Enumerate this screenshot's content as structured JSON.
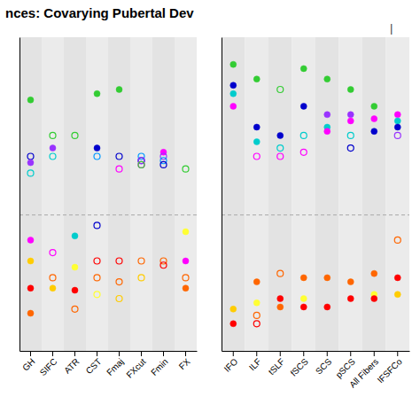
{
  "chart_data": [
    {
      "type": "scatter",
      "title": "nces: Covarying Pubertal Dev",
      "categories": [
        "GH",
        "SIFC",
        "ATR",
        "CST",
        "Fmaj",
        "FXcut",
        "Fmin",
        "FX"
      ],
      "values": [
        [
          0.55,
          0.28,
          0.25,
          0.2,
          -0.12,
          -0.22,
          -0.35,
          -0.47
        ],
        [
          0.38,
          0.32,
          0.28,
          -0.18,
          -0.3,
          -0.35
        ],
        [
          0.38,
          -0.1,
          -0.25,
          -0.36,
          -0.45
        ],
        [
          0.58,
          0.32,
          0.28,
          -0.05,
          -0.22,
          -0.3,
          -0.38
        ],
        [
          0.6,
          0.28,
          0.22,
          -0.22,
          -0.32,
          -0.4
        ],
        [
          0.28,
          0.26,
          0.26,
          0.24,
          0.24,
          -0.22,
          -0.3
        ],
        [
          0.3,
          0.28,
          0.26,
          0.24,
          -0.22,
          -0.24
        ],
        [
          0.22,
          -0.08,
          -0.22,
          -0.3,
          -0.35
        ]
      ],
      "colors": [
        [
          "#33cc33",
          "#0000cc",
          "#9933ff",
          "#00cccc",
          "#ff00ff",
          "#ffcc00",
          "#ff0000",
          "#ff6600"
        ],
        [
          "#33cc33",
          "#9933ff",
          "#00cccc",
          "#ff00ff",
          "#ff6600",
          "#ffcc00"
        ],
        [
          "#33cc33",
          "#00cccc",
          "#ffff33",
          "#ff0000",
          "#ff6600"
        ],
        [
          "#33cc33",
          "#0000cc",
          "#0099ff",
          "#0000cc",
          "#ff0000",
          "#ff6600",
          "#ffff33"
        ],
        [
          "#33cc33",
          "#0000cc",
          "#ff00ff",
          "#ff0000",
          "#ff6600",
          "#ffcc00"
        ],
        [
          "#0099ff",
          "#0000cc",
          "#9933ff",
          "#ff00ff",
          "#33cc33",
          "#ff6600",
          "#ffcc00"
        ],
        [
          "#ff00ff",
          "#9933ff",
          "#0099ff",
          "#0000cc",
          "#ff6600",
          "#ff0000"
        ],
        [
          "#33cc33",
          "#ffff33",
          "#ff00ff",
          "#ff6600",
          "#ff6600"
        ]
      ],
      "marker": [
        [
          "filled",
          "open",
          "filled",
          "open",
          "filled",
          "filled",
          "filled",
          "filled"
        ],
        [
          "open",
          "filled",
          "open",
          "open",
          "open",
          "filled"
        ],
        [
          "open",
          "filled",
          "filled",
          "filled",
          "open"
        ],
        [
          "filled",
          "filled",
          "open",
          "open",
          "open",
          "open",
          "open"
        ],
        [
          "filled",
          "open",
          "open",
          "open",
          "open",
          "open"
        ],
        [
          "open",
          "open",
          "open",
          "open",
          "open",
          "open",
          "open"
        ],
        [
          "filled",
          "open",
          "open",
          "open",
          "open",
          "open"
        ],
        [
          "open",
          "filled",
          "filled",
          "open",
          "filled"
        ]
      ],
      "reference_line": 0,
      "ylim": [
        -0.65,
        0.85
      ],
      "yticks": [],
      "tick_labels": "x"
    },
    {
      "type": "scatter",
      "annotation": "|",
      "categories": [
        "IFO",
        "ILF",
        "tSLF",
        "fSCS",
        "SCS",
        "pSCS",
        "All Fibers",
        "IFSFCo"
      ],
      "values": [
        [
          0.72,
          0.62,
          0.58,
          0.52,
          -0.52,
          -0.45
        ],
        [
          0.65,
          0.42,
          0.35,
          0.28,
          -0.32,
          -0.42,
          -0.48,
          -0.52
        ],
        [
          0.6,
          0.38,
          0.32,
          0.28,
          -0.28,
          -0.4,
          -0.44
        ],
        [
          0.7,
          0.52,
          0.38,
          0.3,
          -0.3,
          -0.4,
          -0.44
        ],
        [
          0.65,
          0.48,
          0.42,
          0.4,
          -0.3,
          -0.44
        ],
        [
          0.6,
          0.48,
          0.45,
          0.38,
          0.32,
          -0.32,
          -0.4
        ],
        [
          0.52,
          0.46,
          0.4,
          -0.28,
          -0.38,
          -0.4
        ],
        [
          0.48,
          0.45,
          0.42,
          0.38,
          -0.12,
          -0.3,
          -0.38
        ]
      ],
      "colors": [
        [
          "#33cc33",
          "#0000cc",
          "#00cccc",
          "#ff00ff",
          "#ff0000",
          "#ffcc00"
        ],
        [
          "#33cc33",
          "#0000cc",
          "#00cccc",
          "#ff00ff",
          "#ff6600",
          "#ffff33",
          "#ff6600",
          "#ff0000"
        ],
        [
          "#33cc33",
          "#0000cc",
          "#00cccc",
          "#ff00ff",
          "#ff6600",
          "#ff0000",
          "#ff6600"
        ],
        [
          "#33cc33",
          "#0000cc",
          "#00cccc",
          "#ff00ff",
          "#ff6600",
          "#ffff33",
          "#ff0000"
        ],
        [
          "#33cc33",
          "#9933ff",
          "#00cccc",
          "#ff00ff",
          "#ff6600",
          "#ff0000"
        ],
        [
          "#33cc33",
          "#9933ff",
          "#ff00ff",
          "#00cccc",
          "#0000cc",
          "#ff6600",
          "#ff0000"
        ],
        [
          "#33cc33",
          "#ff00ff",
          "#0000cc",
          "#ff6600",
          "#ffff33",
          "#ff0000"
        ],
        [
          "#ff00ff",
          "#00cccc",
          "#0000cc",
          "#9933ff",
          "#ff6600",
          "#ff0000",
          "#ffcc00"
        ]
      ],
      "marker": [
        [
          "filled",
          "filled",
          "filled",
          "filled",
          "filled",
          "filled"
        ],
        [
          "filled",
          "filled",
          "filled",
          "open",
          "filled",
          "filled",
          "open",
          "open"
        ],
        [
          "open",
          "filled",
          "open",
          "open",
          "open",
          "filled",
          "filled"
        ],
        [
          "filled",
          "filled",
          "open",
          "open",
          "filled",
          "filled",
          "filled"
        ],
        [
          "filled",
          "filled",
          "filled",
          "filled",
          "filled",
          "filled"
        ],
        [
          "filled",
          "filled",
          "filled",
          "open",
          "open",
          "filled",
          "filled"
        ],
        [
          "filled",
          "filled",
          "filled",
          "filled",
          "filled",
          "filled"
        ],
        [
          "filled",
          "filled",
          "filled",
          "open",
          "open",
          "filled",
          "filled"
        ]
      ],
      "reference_line": 0,
      "ylim": [
        -0.65,
        0.85
      ],
      "yticks": [],
      "tick_labels": "x"
    }
  ]
}
